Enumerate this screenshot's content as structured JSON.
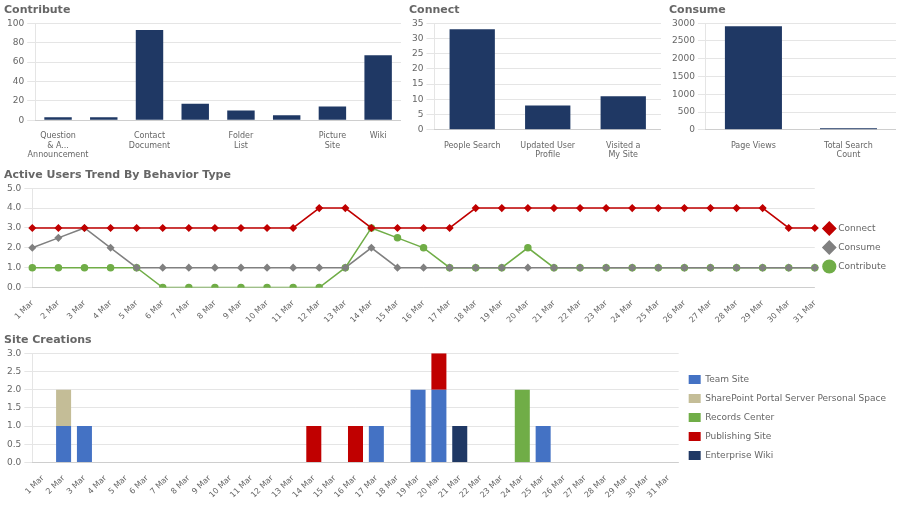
{
  "chart_data": [
    {
      "type": "bar",
      "title": "Contribute",
      "categories": [
        "Question\n& A...\nAnnouncement",
        null,
        "Contact\nDocument",
        null,
        "Folder\nList",
        null,
        "Picture\nSite",
        "Wiki"
      ],
      "values": [
        3,
        3,
        93,
        17,
        10,
        5,
        14,
        67
      ],
      "color": "#1F3864",
      "ylim": [
        0,
        100
      ],
      "yticks": [
        0,
        20,
        40,
        60,
        80,
        100
      ],
      "grid": true
    },
    {
      "type": "bar",
      "title": "Connect",
      "categories": [
        "People Search",
        "Updated User\nProfile",
        "Visited a\nMy Site"
      ],
      "values": [
        33,
        8,
        11
      ],
      "color": "#1F3864",
      "ylim": [
        0,
        35
      ],
      "yticks": [
        0,
        5,
        10,
        15,
        20,
        25,
        30,
        35
      ],
      "grid": true
    },
    {
      "type": "bar",
      "title": "Consume",
      "categories": [
        "Page Views",
        "Total Search\nCount"
      ],
      "values": [
        2913,
        46
      ],
      "color": "#1F3864",
      "ylim": [
        0,
        3000
      ],
      "yticks": [
        0,
        500,
        1000,
        1500,
        2000,
        2500,
        3000
      ],
      "grid": true
    },
    {
      "type": "line",
      "title": "Active Users Trend By Behavior Type",
      "categories": [
        "1 Mar",
        "2 Mar",
        "3 Mar",
        "4 Mar",
        "5 Mar",
        "6 Mar",
        "7 Mar",
        "8 Mar",
        "9 Mar",
        "10 Mar",
        "11 Mar",
        "12 Mar",
        "13 Mar",
        "14 Mar",
        "15 Mar",
        "16 Mar",
        "17 Mar",
        "18 Mar",
        "19 Mar",
        "20 Mar",
        "21 Mar",
        "22 Mar",
        "23 Mar",
        "24 Mar",
        "25 Mar",
        "26 Mar",
        "27 Mar",
        "28 Mar",
        "29 Mar",
        "30 Mar",
        "31 Mar"
      ],
      "series": [
        {
          "name": "Connect",
          "color": "#C00000",
          "marker": "diamond",
          "values": [
            3,
            3,
            3,
            3,
            3,
            3,
            3,
            3,
            3,
            3,
            3,
            4,
            4,
            3,
            3,
            3,
            3,
            4,
            4,
            4,
            4,
            4,
            4,
            4,
            4,
            4,
            4,
            4,
            4,
            3,
            3
          ]
        },
        {
          "name": "Consume",
          "color": "#808080",
          "marker": "diamond",
          "values": [
            2,
            2.5,
            3,
            2,
            1,
            1,
            1,
            1,
            1,
            1,
            1,
            1,
            1,
            2,
            1,
            1,
            1,
            1,
            1,
            1,
            1,
            1,
            1,
            1,
            1,
            1,
            1,
            1,
            1,
            1,
            1
          ]
        },
        {
          "name": "Contribute",
          "color": "#70AD47",
          "marker": "circle",
          "values": [
            1,
            1,
            1,
            1,
            1,
            0,
            0,
            0,
            0,
            0,
            0,
            0,
            1,
            3,
            2.5,
            2,
            1,
            1,
            1,
            2,
            1,
            1,
            1,
            1,
            1,
            1,
            1,
            1,
            1,
            1,
            1
          ]
        }
      ],
      "ylim": [
        0,
        5
      ],
      "yticks": [
        {
          "value": 0,
          "label": "0.0"
        },
        {
          "value": 1,
          "label": "1.0"
        },
        {
          "value": 2,
          "label": "2.0"
        },
        {
          "value": 3,
          "label": "3.0"
        },
        {
          "value": 4,
          "label": "4.0"
        },
        {
          "value": 5,
          "label": "5.0"
        }
      ],
      "grid": true,
      "legend": "right"
    },
    {
      "type": "bar",
      "title": "Site Creations",
      "stacked": true,
      "categories": [
        "1 Mar",
        "2 Mar",
        "3 Mar",
        "4 Mar",
        "5 Mar",
        "6 Mar",
        "7 Mar",
        "8 Mar",
        "9 Mar",
        "10 Mar",
        "11 Mar",
        "12 Mar",
        "13 Mar",
        "14 Mar",
        "15 Mar",
        "16 Mar",
        "17 Mar",
        "18 Mar",
        "19 Mar",
        "20 Mar",
        "21 Mar",
        "22 Mar",
        "23 Mar",
        "24 Mar",
        "25 Mar",
        "26 Mar",
        "27 Mar",
        "28 Mar",
        "29 Mar",
        "30 Mar",
        "31 Mar"
      ],
      "series": [
        {
          "name": "Team Site",
          "color": "#4472C4",
          "values": [
            0,
            1,
            1,
            0,
            0,
            0,
            0,
            0,
            0,
            0,
            0,
            0,
            0,
            0,
            0,
            0,
            1,
            0,
            2,
            2,
            0,
            0,
            0,
            0,
            1,
            0,
            0,
            0,
            0,
            0,
            0
          ]
        },
        {
          "name": "SharePoint Portal Server Personal Space",
          "color": "#C4BD97",
          "values": [
            0,
            1,
            0,
            0,
            0,
            0,
            0,
            0,
            0,
            0,
            0,
            0,
            0,
            0,
            0,
            0,
            0,
            0,
            0,
            0,
            0,
            0,
            0,
            0,
            0,
            0,
            0,
            0,
            0,
            0,
            0
          ]
        },
        {
          "name": "Records Center",
          "color": "#70AD47",
          "values": [
            0,
            0,
            0,
            0,
            0,
            0,
            0,
            0,
            0,
            0,
            0,
            0,
            0,
            0,
            0,
            0,
            0,
            0,
            0,
            0,
            0,
            0,
            0,
            2,
            0,
            0,
            0,
            0,
            0,
            0,
            0
          ]
        },
        {
          "name": "Publishing Site",
          "color": "#C00000",
          "values": [
            0,
            0,
            0,
            0,
            0,
            0,
            0,
            0,
            0,
            0,
            0,
            0,
            0,
            1,
            0,
            1,
            0,
            0,
            0,
            1,
            0,
            0,
            0,
            0,
            0,
            0,
            0,
            0,
            0,
            0,
            0
          ]
        },
        {
          "name": "Enterprise Wiki",
          "color": "#1F3864",
          "values": [
            0,
            0,
            0,
            0,
            0,
            0,
            0,
            0,
            0,
            0,
            0,
            0,
            0,
            0,
            0,
            0,
            0,
            0,
            0,
            0,
            1,
            0,
            0,
            0,
            0,
            0,
            0,
            0,
            0,
            0,
            0
          ]
        }
      ],
      "ylim": [
        0,
        3
      ],
      "yticks": [
        {
          "value": 0,
          "label": "0.0"
        },
        0.5,
        {
          "value": 1,
          "label": "1.0"
        },
        1.5,
        {
          "value": 2,
          "label": "2.0"
        },
        2.5,
        {
          "value": 3,
          "label": "3.0"
        }
      ],
      "grid": true,
      "legend": "right"
    }
  ]
}
